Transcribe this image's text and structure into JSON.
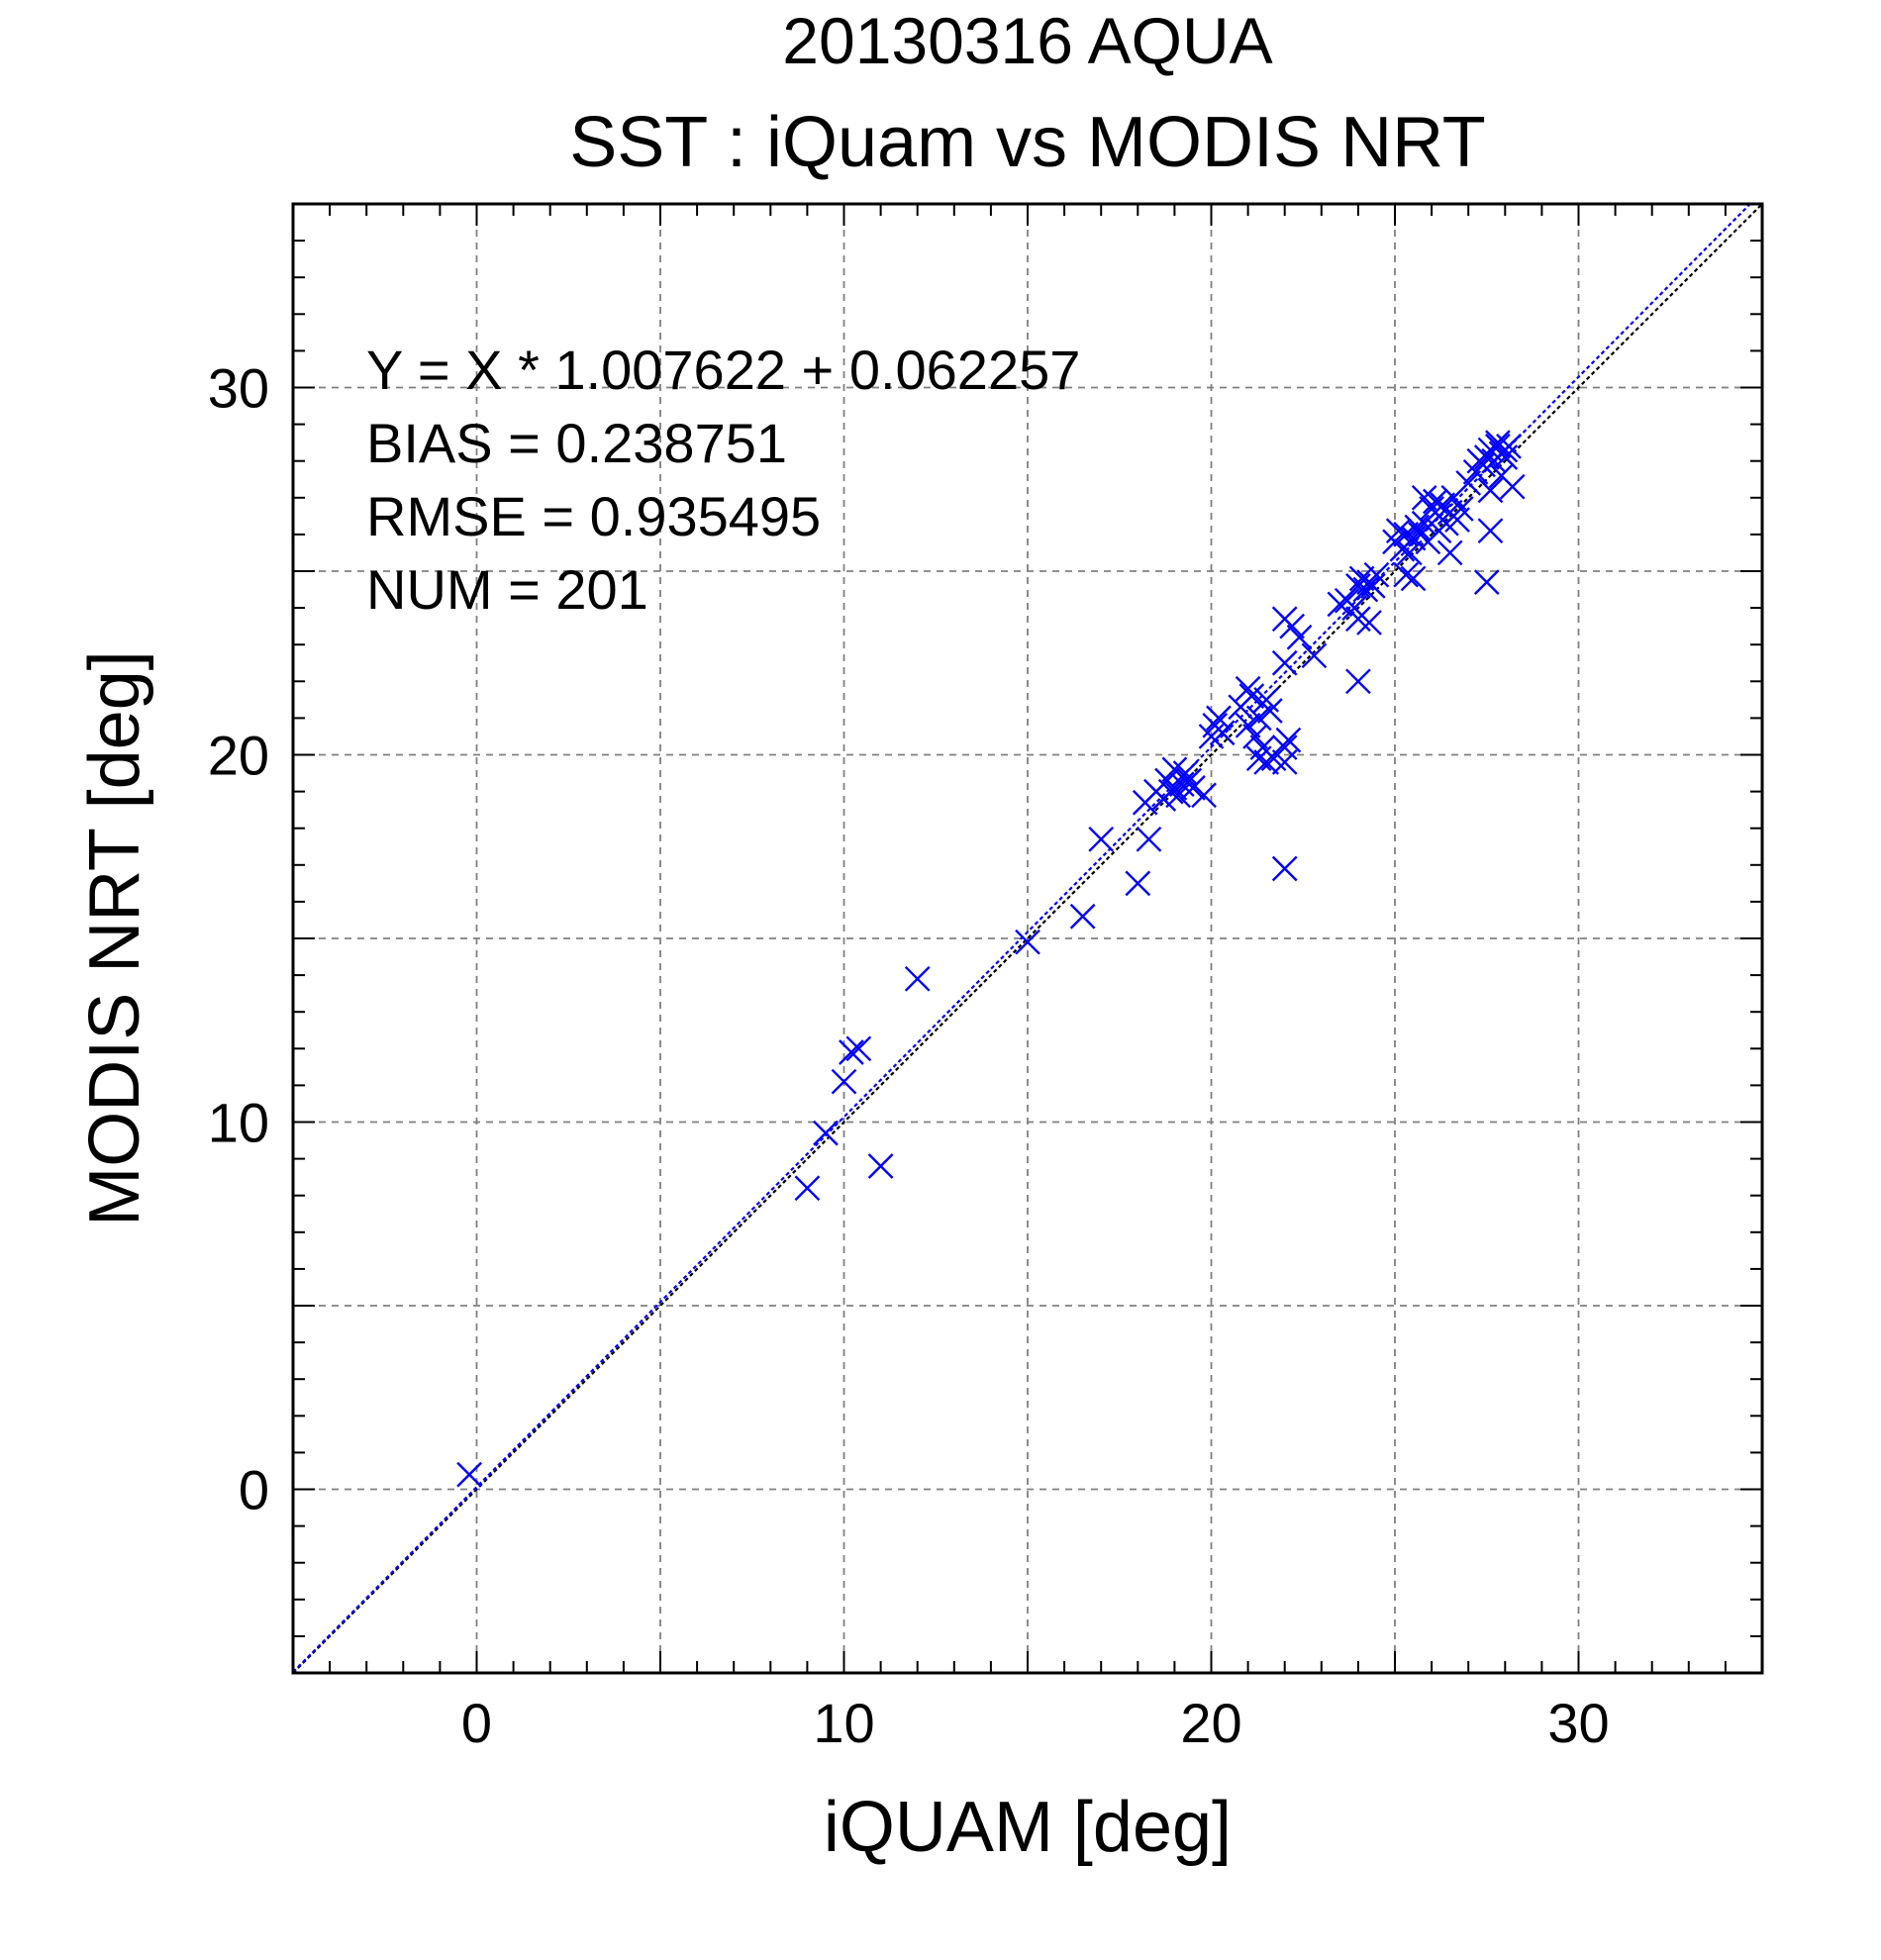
{
  "chart_data": {
    "type": "scatter",
    "title": "20130316 AQUA",
    "subtitle": "SST : iQuam vs MODIS NRT",
    "xlabel": "iQUAM [deg]",
    "ylabel": "MODIS NRT [deg]",
    "xlim": [
      -5,
      35
    ],
    "ylim": [
      -5,
      35
    ],
    "xticks": [
      0,
      10,
      20,
      30
    ],
    "yticks": [
      0,
      10,
      20,
      30
    ],
    "grid": true,
    "colors": {
      "title": "#808080",
      "points": "#0000ff",
      "fit_line": "#0000ff",
      "identity_line": "#000000",
      "grid": "#808080"
    },
    "annotations": [
      "Y = X * 1.007622 + 0.062257",
      "BIAS = 0.238751",
      "RMSE = 0.935495",
      "NUM = 201"
    ],
    "fit": {
      "slope": 1.007622,
      "intercept": 0.062257
    },
    "series": [
      {
        "points": [
          [
            -0.2,
            0.4
          ],
          [
            9.0,
            8.2
          ],
          [
            9.5,
            9.7
          ],
          [
            10.0,
            11.1
          ],
          [
            10.2,
            11.9
          ],
          [
            10.4,
            12.0
          ],
          [
            11.0,
            8.8
          ],
          [
            12.0,
            13.9
          ],
          [
            15.0,
            14.9
          ],
          [
            16.5,
            15.6
          ],
          [
            17.0,
            17.7
          ],
          [
            18.0,
            16.5
          ],
          [
            18.2,
            18.7
          ],
          [
            18.3,
            17.7
          ],
          [
            18.5,
            19.0
          ],
          [
            18.7,
            18.8
          ],
          [
            18.8,
            19.3
          ],
          [
            19.0,
            19.1
          ],
          [
            19.0,
            19.6
          ],
          [
            19.1,
            18.9
          ],
          [
            19.2,
            19.2
          ],
          [
            19.3,
            19.5
          ],
          [
            19.5,
            19.1
          ],
          [
            19.8,
            18.9
          ],
          [
            18.9,
            19.0
          ],
          [
            19.4,
            19.3
          ],
          [
            20.0,
            20.5
          ],
          [
            20.1,
            20.8
          ],
          [
            20.2,
            21.0
          ],
          [
            20.3,
            20.6
          ],
          [
            20.8,
            21.3
          ],
          [
            21.0,
            21.8
          ],
          [
            21.0,
            20.8
          ],
          [
            21.1,
            21.6
          ],
          [
            21.2,
            20.5
          ],
          [
            21.3,
            21.0
          ],
          [
            21.4,
            20.2
          ],
          [
            21.5,
            21.5
          ],
          [
            21.5,
            19.8
          ],
          [
            21.6,
            21.2
          ],
          [
            21.3,
            19.9
          ],
          [
            21.7,
            19.9
          ],
          [
            22.0,
            20.2
          ],
          [
            22.0,
            19.8
          ],
          [
            22.1,
            20.4
          ],
          [
            22.0,
            16.9
          ],
          [
            22.0,
            22.5
          ],
          [
            22.2,
            23.5
          ],
          [
            22.4,
            23.2
          ],
          [
            22.8,
            22.7
          ],
          [
            22.0,
            23.7
          ],
          [
            23.5,
            24.1
          ],
          [
            23.7,
            24.2
          ],
          [
            23.9,
            24.0
          ],
          [
            24.0,
            23.7
          ],
          [
            24.0,
            24.6
          ],
          [
            24.0,
            22.0
          ],
          [
            24.1,
            24.8
          ],
          [
            24.2,
            24.5
          ],
          [
            24.3,
            24.7
          ],
          [
            24.4,
            24.6
          ],
          [
            24.5,
            24.9
          ],
          [
            24.3,
            23.6
          ],
          [
            25.0,
            25.8
          ],
          [
            25.1,
            26.1
          ],
          [
            25.2,
            25.6
          ],
          [
            25.3,
            26.0
          ],
          [
            25.4,
            25.5
          ],
          [
            25.5,
            25.9
          ],
          [
            25.6,
            26.2
          ],
          [
            25.7,
            26.0
          ],
          [
            25.8,
            26.3
          ],
          [
            25.9,
            25.8
          ],
          [
            25.3,
            24.9
          ],
          [
            25.5,
            24.8
          ],
          [
            25.8,
            27.0
          ],
          [
            26.0,
            26.7
          ],
          [
            26.1,
            26.9
          ],
          [
            26.2,
            26.5
          ],
          [
            26.3,
            26.8
          ],
          [
            26.4,
            26.3
          ],
          [
            26.5,
            26.6
          ],
          [
            26.6,
            27.0
          ],
          [
            26.7,
            26.4
          ],
          [
            26.5,
            25.5
          ],
          [
            26.8,
            26.7
          ],
          [
            26.2,
            26.1
          ],
          [
            27.0,
            27.4
          ],
          [
            27.2,
            27.7
          ],
          [
            27.4,
            27.9
          ],
          [
            27.5,
            28.1
          ],
          [
            27.6,
            28.3
          ],
          [
            27.7,
            28.0
          ],
          [
            27.8,
            28.4
          ],
          [
            27.9,
            28.2
          ],
          [
            28.0,
            28.3
          ],
          [
            28.1,
            28.4
          ],
          [
            27.6,
            27.2
          ],
          [
            27.9,
            27.6
          ],
          [
            28.2,
            27.3
          ],
          [
            27.6,
            26.1
          ],
          [
            27.5,
            24.7
          ],
          [
            27.8,
            28.5
          ],
          [
            28.0,
            28.1
          ],
          [
            27.3,
            28.0
          ]
        ]
      }
    ]
  }
}
